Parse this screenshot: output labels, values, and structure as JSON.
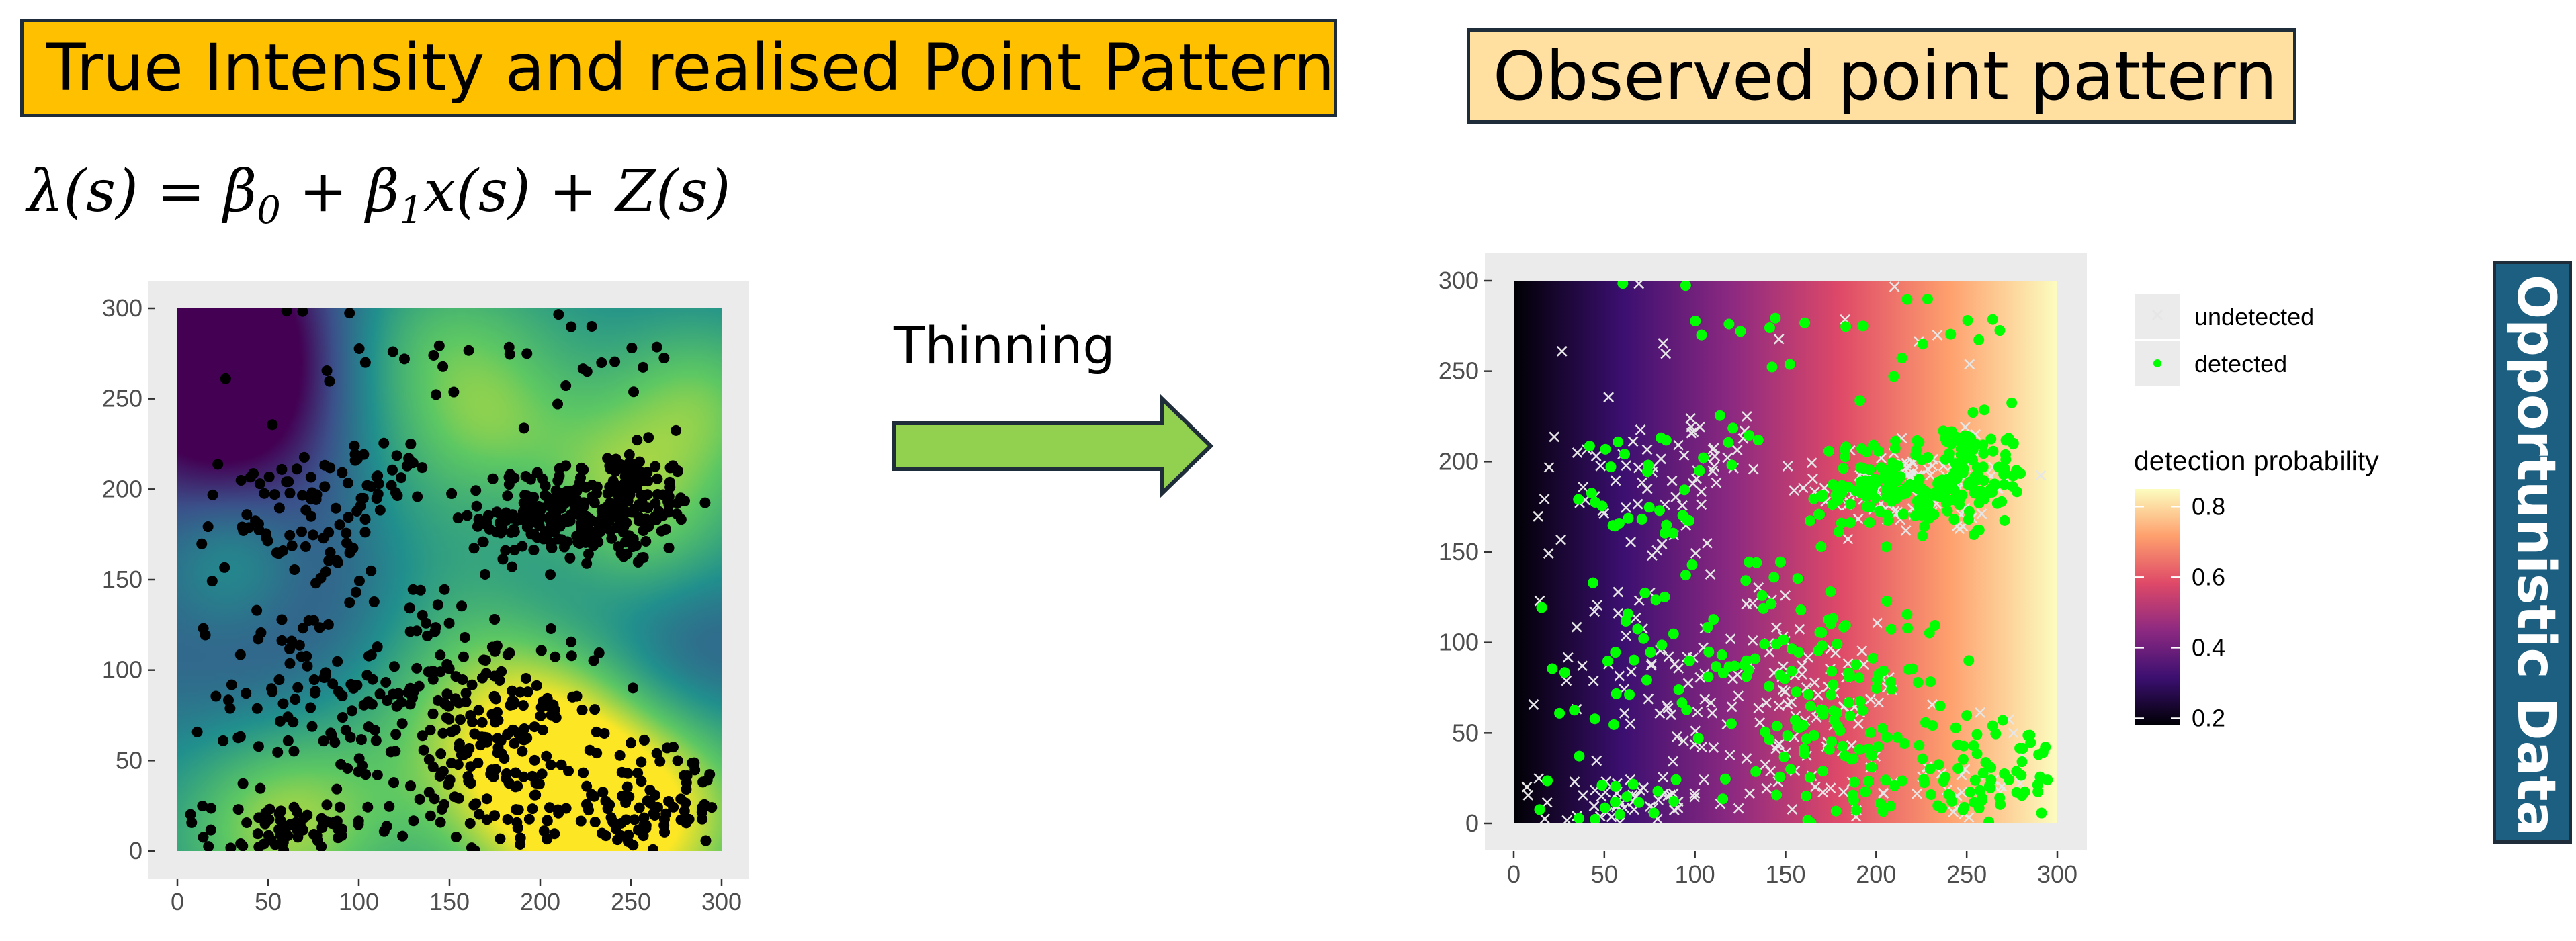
{
  "titles": {
    "left": "True Intensity and realised Point Pattern",
    "right": "Observed point pattern"
  },
  "formula": {
    "lhs": "λ(s) = ",
    "beta0": "β",
    "beta0_sub": "0",
    "plus1": " + ",
    "beta1": "β",
    "beta1_sub": "1",
    "rest": "x(s) + Z(s)"
  },
  "arrow": {
    "label": "Thinning",
    "fill": "#92d050",
    "stroke": "#1f2d3a"
  },
  "side_tab": {
    "label": "Opportunistic Data",
    "fill": "#1c5f80"
  },
  "colors": {
    "panel_bg": "#ebebeb",
    "true_point": "#000000",
    "detected": "#00ff00",
    "undetected": "#e6e6e6",
    "viridis": [
      "#440154",
      "#3b528b",
      "#21908d",
      "#5dc863",
      "#fde725"
    ],
    "magma": [
      "#000004",
      "#3b0f70",
      "#8c2981",
      "#de4968",
      "#fe9f6d",
      "#fcfdbf"
    ]
  },
  "chart_data": [
    {
      "type": "scatter",
      "title": "",
      "xlim": [
        0,
        300
      ],
      "ylim": [
        0,
        300
      ],
      "x_ticks": [
        "0",
        "50",
        "100",
        "150",
        "200",
        "250",
        "300"
      ],
      "y_ticks": [
        "0",
        "50",
        "100",
        "150",
        "200",
        "250",
        "300"
      ],
      "background": "intensity raster (viridis)",
      "grid": true,
      "clusters": [
        {
          "x": 240,
          "y": 190,
          "sx": 22,
          "sy": 16,
          "n": 220
        },
        {
          "x": 195,
          "y": 185,
          "sx": 14,
          "sy": 12,
          "n": 90
        },
        {
          "x": 55,
          "y": 185,
          "sx": 22,
          "sy": 20,
          "n": 60
        },
        {
          "x": 110,
          "y": 200,
          "sx": 16,
          "sy": 14,
          "n": 40
        },
        {
          "x": 185,
          "y": 50,
          "sx": 22,
          "sy": 30,
          "n": 120
        },
        {
          "x": 265,
          "y": 25,
          "sx": 25,
          "sy": 16,
          "n": 80
        },
        {
          "x": 60,
          "y": 10,
          "sx": 22,
          "sy": 9,
          "n": 70
        },
        {
          "x": 130,
          "y": 80,
          "sx": 45,
          "sy": 40,
          "n": 180
        },
        {
          "x": 60,
          "y": 90,
          "sx": 20,
          "sy": 25,
          "n": 40
        },
        {
          "x": 250,
          "y": 30,
          "sx": 30,
          "sy": 20,
          "n": 40
        },
        {
          "x": 160,
          "y": 270,
          "sx": 80,
          "sy": 20,
          "n": 40
        }
      ]
    },
    {
      "type": "scatter",
      "title": "",
      "xlim": [
        0,
        300
      ],
      "ylim": [
        0,
        300
      ],
      "x_ticks": [
        "0",
        "50",
        "100",
        "150",
        "200",
        "250",
        "300"
      ],
      "y_ticks": [
        "0",
        "50",
        "100",
        "150",
        "200",
        "250",
        "300"
      ],
      "background": "detection probability gradient along x (magma)",
      "grid": true,
      "legend_placement": "right",
      "legend": {
        "series": [
          {
            "name": "undetected",
            "marker": "x",
            "color": "#e6e6e6"
          },
          {
            "name": "detected",
            "marker": "dot",
            "color": "#00ff00"
          }
        ],
        "colorbar_title": "detection probability",
        "colorbar_ticks": [
          "0.8",
          "0.6",
          "0.4",
          "0.2"
        ],
        "colorbar_values": [
          0.8,
          0.6,
          0.4,
          0.2
        ],
        "colorbar_range": [
          0.18,
          0.85
        ]
      },
      "detection_probability_range": [
        0.18,
        0.85
      ],
      "points_from": "thinning of panel 1 points by detection probability"
    }
  ]
}
